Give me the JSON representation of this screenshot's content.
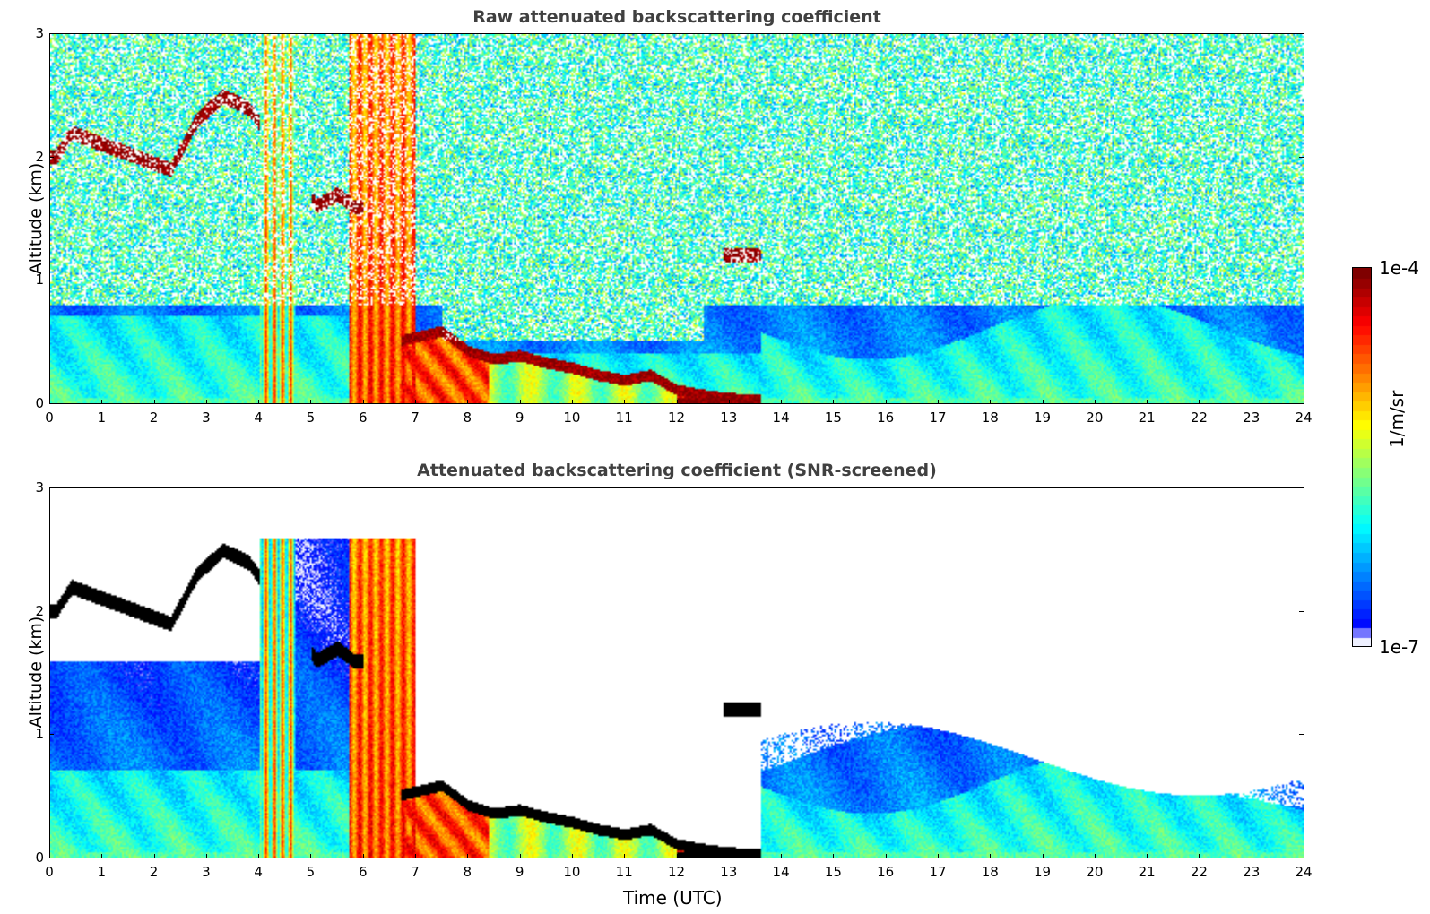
{
  "chart_data": [
    {
      "type": "heatmap",
      "title": "Raw attenuated backscattering coefficient",
      "xlabel": "",
      "ylabel": "Altitude (km)",
      "xlim": [
        0,
        24
      ],
      "ylim": [
        0,
        3
      ],
      "xticks": [
        "0",
        "1",
        "2",
        "3",
        "4",
        "5",
        "6",
        "7",
        "8",
        "9",
        "10",
        "11",
        "12",
        "13",
        "14",
        "15",
        "16",
        "17",
        "18",
        "19",
        "20",
        "21",
        "22",
        "23",
        "24"
      ],
      "yticks": [
        "0",
        "1",
        "2",
        "3"
      ],
      "screened": false,
      "features": {
        "cloud_top_layer_km": [
          [
            0.1,
            2.0
          ],
          [
            0.4,
            2.2
          ],
          [
            2.3,
            1.9
          ],
          [
            2.8,
            2.3
          ],
          [
            3.3,
            2.5
          ],
          [
            3.8,
            2.4
          ],
          [
            5.1,
            1.6
          ],
          [
            5.5,
            1.7
          ],
          [
            5.8,
            1.6
          ],
          [
            13.0,
            1.2
          ],
          [
            13.4,
            1.2
          ]
        ],
        "boundary_layer_top_km": [
          [
            6.7,
            0.5
          ],
          [
            7.5,
            0.58
          ],
          [
            8.0,
            0.42
          ],
          [
            8.5,
            0.35
          ],
          [
            9.0,
            0.38
          ],
          [
            9.5,
            0.32
          ],
          [
            10.0,
            0.28
          ],
          [
            10.5,
            0.22
          ],
          [
            11.0,
            0.18
          ],
          [
            11.5,
            0.22
          ],
          [
            12.0,
            0.1
          ],
          [
            12.5,
            0.06
          ],
          [
            13.0,
            0.03
          ],
          [
            13.6,
            0.02
          ]
        ],
        "precip_columns_utc": [
          [
            4.0,
            4.7
          ],
          [
            5.7,
            6.1
          ],
          [
            6.1,
            7.0
          ]
        ]
      }
    },
    {
      "type": "heatmap",
      "title": "Attenuated backscattering coefficient (SNR-screened)",
      "xlabel": "Time (UTC)",
      "ylabel": "Altitude (km)",
      "xlim": [
        0,
        24
      ],
      "ylim": [
        0,
        3
      ],
      "xticks": [
        "0",
        "1",
        "2",
        "3",
        "4",
        "5",
        "6",
        "7",
        "8",
        "9",
        "10",
        "11",
        "12",
        "13",
        "14",
        "15",
        "16",
        "17",
        "18",
        "19",
        "20",
        "21",
        "22",
        "23",
        "24"
      ],
      "yticks": [
        "0",
        "1",
        "2",
        "3"
      ],
      "screened": true
    }
  ],
  "colorbar": {
    "label": "1/m/sr",
    "max_label": "1e-4",
    "min_label": "1e-7",
    "scale": "log",
    "colormap": "jet",
    "colors": [
      "#eef0ff",
      "#0000ff",
      "#0080ff",
      "#00e0ff",
      "#80ff80",
      "#ffff00",
      "#ff8000",
      "#ff0000",
      "#800000"
    ]
  }
}
